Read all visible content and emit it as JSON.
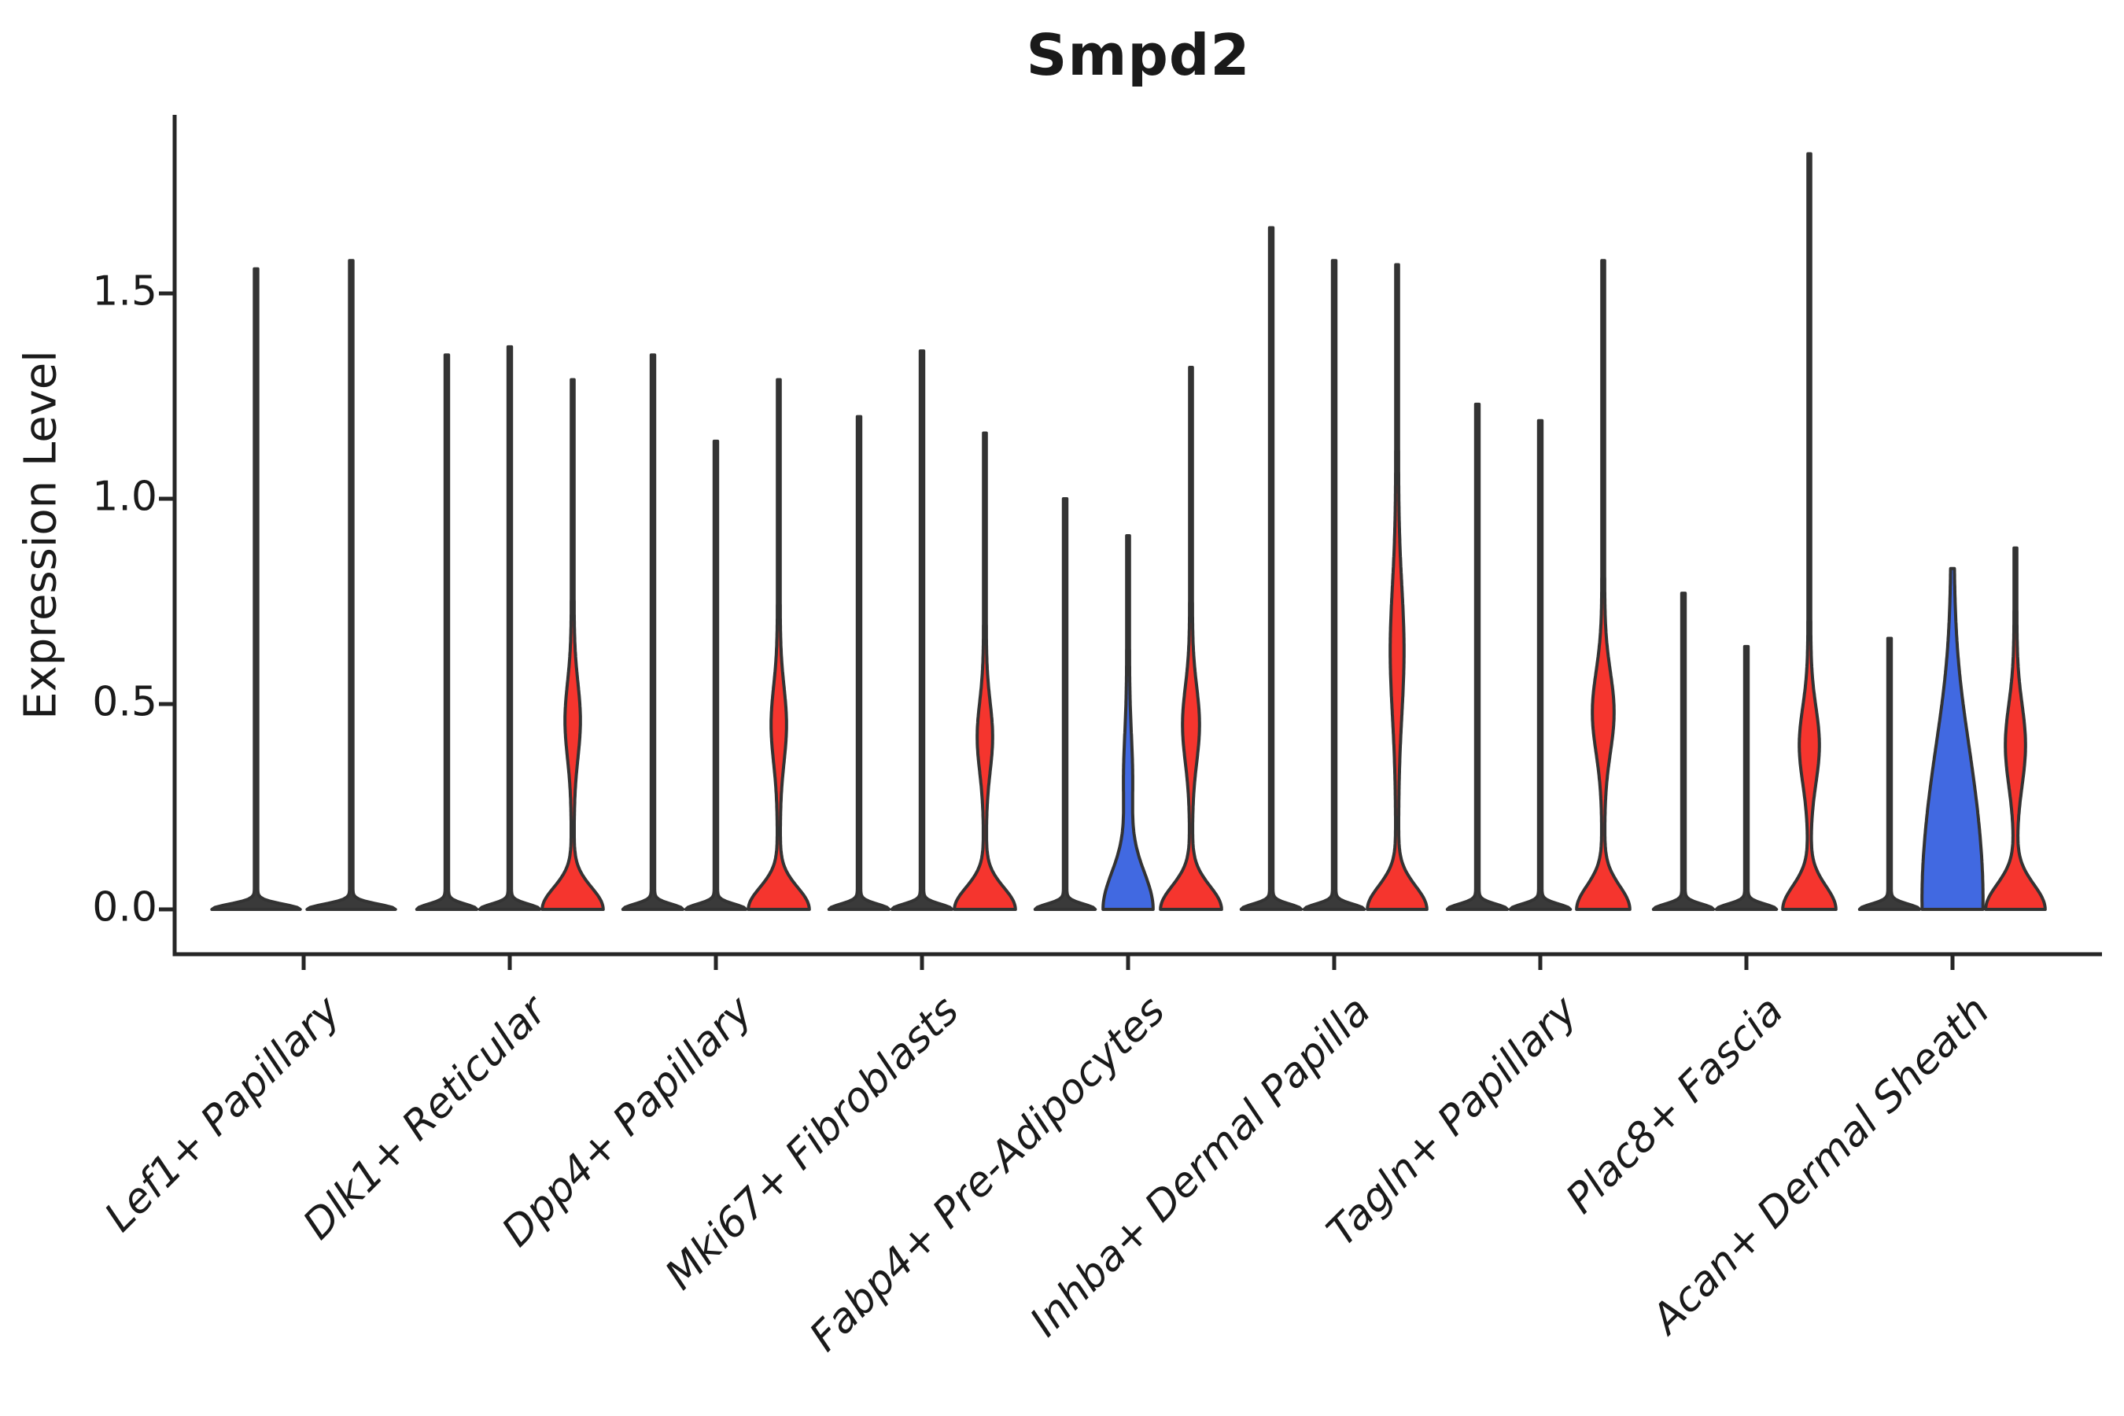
{
  "title": "Smpd2",
  "axes": {
    "ylabel": "Expression Level"
  },
  "chart_data": {
    "type": "violin",
    "title": "Smpd2",
    "xlabel": "",
    "ylabel": "Expression Level",
    "ylim": [
      0,
      1.93
    ],
    "grid": false,
    "legend": null,
    "yticks": [
      {
        "label": "0.0",
        "value": 0.0
      },
      {
        "label": "0.5",
        "value": 0.5
      },
      {
        "label": "1.0",
        "value": 1.0
      },
      {
        "label": "1.5",
        "value": 1.5
      }
    ],
    "colors": {
      "red": "#f5352e",
      "blue": "#4169e1",
      "unfilled": "#3a3a3a",
      "outline": "#333333",
      "axis": "#262626"
    },
    "description": "Violin plot of Smpd2 expression level per fibroblast cluster; each cluster shows 2-3 sample violins. Most violins are near-zero thin spikes; red/blue filled violins have an expressing fraction (wide base, bulge = density bump, max = top of spike).",
    "categories": [
      {
        "label": "Lef1+ Papillary",
        "violins": [
          {
            "fill": "unfilled",
            "max": 1.56,
            "base_hw": 54,
            "base_s": 0.018
          },
          {
            "fill": "unfilled",
            "max": 1.58,
            "base_hw": 54,
            "base_s": 0.018
          }
        ]
      },
      {
        "label": "Dlk1+ Reticular",
        "violins": [
          {
            "fill": "unfilled",
            "max": 1.35,
            "base_hw": 36,
            "base_s": 0.018
          },
          {
            "fill": "unfilled",
            "max": 1.37,
            "base_hw": 36,
            "base_s": 0.018
          },
          {
            "fill": "red",
            "max": 1.29,
            "base_hw": 37,
            "base_s": 0.075,
            "bulge_hw": 8,
            "bulge_c": 0.46,
            "bulge_s": 0.13
          }
        ]
      },
      {
        "label": "Dpp4+ Papillary",
        "violins": [
          {
            "fill": "unfilled",
            "max": 1.35,
            "base_hw": 36,
            "base_s": 0.018
          },
          {
            "fill": "unfilled",
            "max": 1.14,
            "base_hw": 36,
            "base_s": 0.018
          },
          {
            "fill": "red",
            "max": 1.29,
            "base_hw": 37,
            "base_s": 0.075,
            "bulge_hw": 8,
            "bulge_c": 0.45,
            "bulge_s": 0.13
          }
        ]
      },
      {
        "label": "Mki67+ Fibroblasts",
        "violins": [
          {
            "fill": "unfilled",
            "max": 1.2,
            "base_hw": 36,
            "base_s": 0.018
          },
          {
            "fill": "unfilled",
            "max": 1.36,
            "base_hw": 36,
            "base_s": 0.018
          },
          {
            "fill": "red",
            "max": 1.16,
            "base_hw": 37,
            "base_s": 0.075,
            "bulge_hw": 8,
            "bulge_c": 0.42,
            "bulge_s": 0.12
          }
        ]
      },
      {
        "label": "Fabp4+ Pre-Adipocytes",
        "violins": [
          {
            "fill": "unfilled",
            "max": 1.0,
            "base_hw": 36,
            "base_s": 0.018
          },
          {
            "fill": "blue",
            "max": 0.91,
            "base_hw": 30,
            "base_s": 0.13,
            "bulge_hw": 4,
            "bulge_c": 0.32,
            "bulge_s": 0.15
          },
          {
            "fill": "red",
            "max": 1.32,
            "base_hw": 37,
            "base_s": 0.08,
            "bulge_hw": 9,
            "bulge_c": 0.45,
            "bulge_s": 0.13
          }
        ]
      },
      {
        "label": "Inhba+ Dermal Papilla",
        "violins": [
          {
            "fill": "unfilled",
            "max": 1.66,
            "base_hw": 36,
            "base_s": 0.018
          },
          {
            "fill": "unfilled",
            "max": 1.58,
            "base_hw": 36,
            "base_s": 0.018
          },
          {
            "fill": "red",
            "max": 1.57,
            "base_hw": 36,
            "base_s": 0.08,
            "bulge_hw": 7,
            "bulge_c": 0.63,
            "bulge_s": 0.22
          }
        ]
      },
      {
        "label": "Tagln+ Papillary",
        "violins": [
          {
            "fill": "unfilled",
            "max": 1.23,
            "base_hw": 36,
            "base_s": 0.018
          },
          {
            "fill": "unfilled",
            "max": 1.19,
            "base_hw": 36,
            "base_s": 0.018
          },
          {
            "fill": "red",
            "max": 1.58,
            "base_hw": 32,
            "base_s": 0.08,
            "bulge_hw": 12,
            "bulge_c": 0.48,
            "bulge_s": 0.14
          }
        ]
      },
      {
        "label": "Plac8+ Fascia",
        "violins": [
          {
            "fill": "unfilled",
            "max": 0.77,
            "base_hw": 36,
            "base_s": 0.018
          },
          {
            "fill": "unfilled",
            "max": 0.64,
            "base_hw": 36,
            "base_s": 0.018
          },
          {
            "fill": "red",
            "max": 1.84,
            "base_hw": 32,
            "base_s": 0.08,
            "bulge_hw": 11,
            "bulge_c": 0.4,
            "bulge_s": 0.13
          }
        ]
      },
      {
        "label": "Acan+ Dermal Sheath",
        "violins": [
          {
            "fill": "unfilled",
            "max": 0.66,
            "base_hw": 36,
            "base_s": 0.018
          },
          {
            "fill": "blue",
            "max": 0.83,
            "base_hw": 36,
            "base_s": 0.4,
            "bulge_hw": 6,
            "bulge_c": 0.35,
            "bulge_s": 0.25
          },
          {
            "fill": "red",
            "max": 0.88,
            "base_hw": 36,
            "base_s": 0.085,
            "bulge_hw": 11,
            "bulge_c": 0.4,
            "bulge_s": 0.14
          }
        ]
      }
    ]
  }
}
